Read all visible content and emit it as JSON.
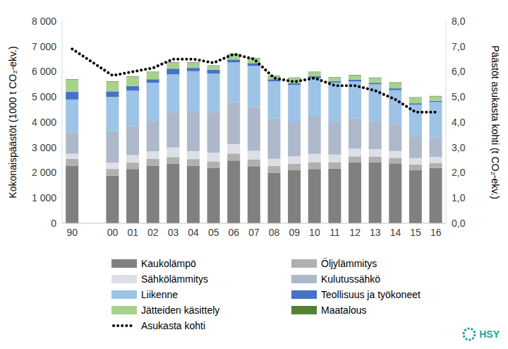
{
  "chart_data": {
    "type": "bar",
    "stacked": true,
    "grid": false,
    "legend": "bottom",
    "categories": [
      "90",
      null,
      "00",
      "01",
      "02",
      "03",
      "04",
      "05",
      "06",
      "07",
      "08",
      "09",
      "10",
      "11",
      "12",
      "13",
      "14",
      "15",
      "16"
    ],
    "y_label": "Kokonaispäästöt (1000 t CO₂-ekv.)",
    "y2_label": "Päästöt asukasta kohti (t CO₂-ekv.)",
    "ylim": [
      0,
      8000
    ],
    "yticks": [
      0,
      {
        "value": 1000,
        "label": "1 000"
      },
      {
        "value": 2000,
        "label": "2 000"
      },
      {
        "value": 3000,
        "label": "3 000"
      },
      {
        "value": 4000,
        "label": "4 000"
      },
      {
        "value": 5000,
        "label": "5 000"
      },
      {
        "value": 6000,
        "label": "6 000"
      },
      {
        "value": 7000,
        "label": "7 000"
      },
      {
        "value": 8000,
        "label": "8 000"
      }
    ],
    "y2lim": [
      0,
      8
    ],
    "y2ticks": [
      {
        "value": 0,
        "label": "0,0"
      },
      {
        "value": 1,
        "label": "1,0"
      },
      {
        "value": 2,
        "label": "2,0"
      },
      {
        "value": 3,
        "label": "3,0"
      },
      {
        "value": 4,
        "label": "4,0"
      },
      {
        "value": 5,
        "label": "5,0"
      },
      {
        "value": 6,
        "label": "6,0"
      },
      {
        "value": 7,
        "label": "7,0"
      },
      {
        "value": 8,
        "label": "8,0"
      }
    ],
    "annotations": [
      "HSY"
    ],
    "series": [
      {
        "name": "Kaukolämpö",
        "color": "#808080",
        "values": [
          2270,
          null,
          1880,
          2150,
          2280,
          2350,
          2270,
          2180,
          2480,
          2260,
          2000,
          2100,
          2150,
          2170,
          2410,
          2420,
          2370,
          2110,
          2190
        ]
      },
      {
        "name": "Öljylämmitys",
        "color": "#b0b0b0",
        "values": [
          280,
          null,
          270,
          250,
          270,
          270,
          270,
          270,
          280,
          270,
          270,
          250,
          270,
          250,
          240,
          220,
          220,
          220,
          200
        ]
      },
      {
        "name": "Sähkölämmitys",
        "color": "#dcdfe6",
        "values": [
          200,
          null,
          250,
          300,
          300,
          380,
          310,
          350,
          370,
          340,
          280,
          300,
          330,
          300,
          300,
          290,
          270,
          250,
          240
        ]
      },
      {
        "name": "Kulutussähkö",
        "color": "#adb9ca",
        "values": [
          850,
          null,
          1250,
          1150,
          1200,
          1400,
          1570,
          1600,
          1670,
          1730,
          1600,
          1350,
          1500,
          1280,
          1200,
          1120,
          1060,
          870,
          770
        ]
      },
      {
        "name": "Liikenne",
        "color": "#9dc3e6",
        "values": [
          1300,
          null,
          1350,
          1400,
          1510,
          1500,
          1600,
          1530,
          1570,
          1630,
          1470,
          1480,
          1500,
          1570,
          1470,
          1450,
          1350,
          1250,
          1400
        ]
      },
      {
        "name": "Teollisuus ja työkoneet",
        "color": "#4472c4",
        "values": [
          300,
          null,
          220,
          180,
          140,
          220,
          130,
          140,
          110,
          110,
          80,
          60,
          70,
          50,
          60,
          60,
          70,
          50,
          50
        ]
      },
      {
        "name": "Jätteiden käsittely",
        "color": "#a9d18e",
        "values": [
          480,
          null,
          380,
          370,
          280,
          230,
          200,
          160,
          200,
          190,
          130,
          210,
          160,
          140,
          170,
          190,
          220,
          220,
          170
        ]
      },
      {
        "name": "Maatalous",
        "color": "#548235",
        "values": [
          20,
          null,
          20,
          20,
          20,
          20,
          20,
          20,
          20,
          20,
          20,
          20,
          20,
          20,
          20,
          20,
          20,
          20,
          20
        ]
      },
      {
        "name": "Asukasta kohti",
        "type": "line",
        "axis": "y2",
        "color": "#000000",
        "line_style": "dotted",
        "marker": "none",
        "values": [
          6.9,
          null,
          5.85,
          6.0,
          6.15,
          6.5,
          6.5,
          6.35,
          6.7,
          6.5,
          5.75,
          5.6,
          5.75,
          5.45,
          5.45,
          5.25,
          4.9,
          4.4,
          4.4
        ]
      }
    ]
  }
}
